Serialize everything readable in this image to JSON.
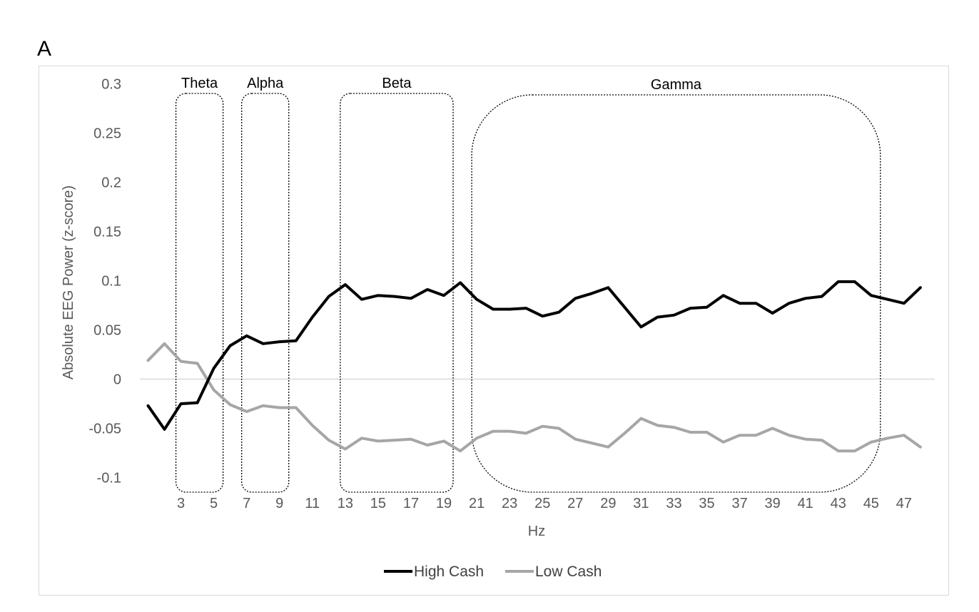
{
  "panel_label": "A",
  "chart_data": {
    "type": "line",
    "title": "",
    "xlabel": "Hz",
    "ylabel": "Absolute EEG Power (z-score)",
    "x": [
      1,
      2,
      3,
      4,
      5,
      6,
      7,
      8,
      9,
      10,
      11,
      12,
      13,
      14,
      15,
      16,
      17,
      18,
      19,
      20,
      21,
      22,
      23,
      24,
      25,
      26,
      27,
      28,
      29,
      30,
      31,
      32,
      33,
      34,
      35,
      36,
      37,
      38,
      39,
      40,
      41,
      42,
      43,
      44,
      45,
      46,
      47,
      48
    ],
    "x_tick_labels": [
      "3",
      "5",
      "7",
      "9",
      "11",
      "13",
      "15",
      "17",
      "19",
      "21",
      "23",
      "25",
      "27",
      "29",
      "31",
      "33",
      "35",
      "37",
      "39",
      "41",
      "43",
      "45",
      "47"
    ],
    "y_tick_labels": [
      "0.3",
      "0.25",
      "0.2",
      "0.15",
      "0.1",
      "0.05",
      "0",
      "-0.05",
      "-0.1"
    ],
    "ylim": [
      -0.1,
      0.3
    ],
    "grid": "zero-line only",
    "legend_position": "bottom",
    "series": [
      {
        "name": "High Cash",
        "color": "#000000",
        "values": [
          -0.027,
          -0.051,
          -0.025,
          -0.024,
          0.011,
          0.034,
          0.044,
          0.036,
          0.038,
          0.039,
          0.063,
          0.084,
          0.096,
          0.081,
          0.085,
          0.084,
          0.082,
          0.091,
          0.085,
          0.098,
          0.081,
          0.071,
          0.071,
          0.072,
          0.064,
          0.068,
          0.082,
          0.087,
          0.093,
          0.073,
          0.053,
          0.063,
          0.065,
          0.072,
          0.073,
          0.085,
          0.077,
          0.077,
          0.067,
          0.077,
          0.082,
          0.084,
          0.099,
          0.099,
          0.085,
          0.081,
          0.077,
          0.093
        ]
      },
      {
        "name": "Low Cash",
        "color": "#a6a6a6",
        "values": [
          0.019,
          0.036,
          0.018,
          0.016,
          -0.011,
          -0.026,
          -0.033,
          -0.027,
          -0.029,
          -0.029,
          -0.047,
          -0.062,
          -0.071,
          -0.06,
          -0.063,
          -0.062,
          -0.061,
          -0.067,
          -0.063,
          -0.073,
          -0.06,
          -0.053,
          -0.053,
          -0.055,
          -0.048,
          -0.05,
          -0.061,
          -0.065,
          -0.069,
          -0.055,
          -0.04,
          -0.047,
          -0.049,
          -0.054,
          -0.054,
          -0.064,
          -0.057,
          -0.057,
          -0.05,
          -0.057,
          -0.061,
          -0.062,
          -0.073,
          -0.073,
          -0.064,
          -0.06,
          -0.057,
          -0.069
        ]
      }
    ],
    "bands": [
      {
        "label": "Theta",
        "from": 3,
        "to": 5
      },
      {
        "label": "Alpha",
        "from": 7,
        "to": 9
      },
      {
        "label": "Beta",
        "from": 13,
        "to": 19
      },
      {
        "label": "Gamma",
        "from": 21,
        "to": 45
      }
    ]
  }
}
